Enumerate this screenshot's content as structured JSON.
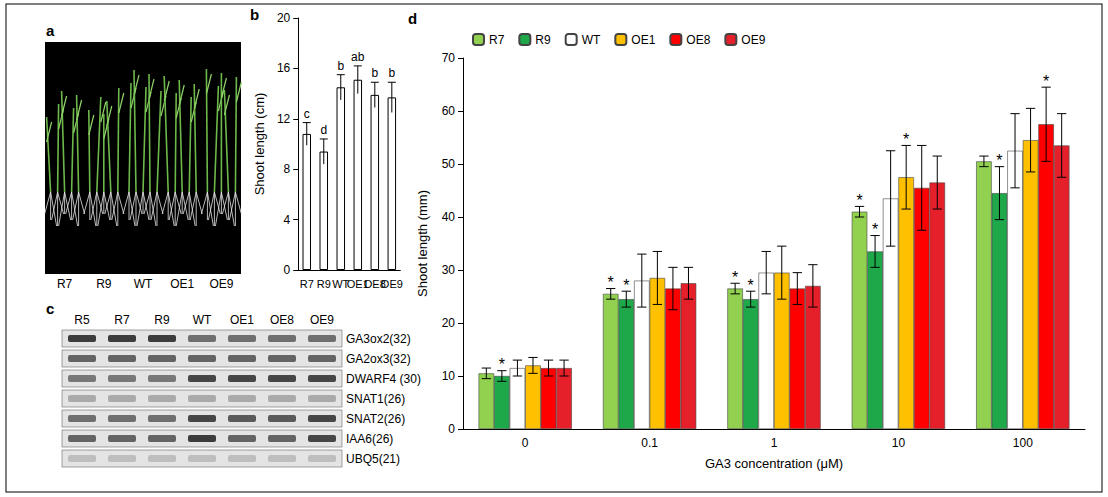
{
  "chart_data": [
    {
      "panel": "b",
      "type": "bar",
      "categories": [
        "R7",
        "R9",
        "WT",
        "OE1",
        "OE8",
        "OE9"
      ],
      "values": [
        10.8,
        9.4,
        14.5,
        15.1,
        13.9,
        13.7
      ],
      "errors": [
        0.9,
        1.0,
        1.0,
        1.1,
        1.0,
        1.2
      ],
      "letters": [
        "c",
        "d",
        "b",
        "ab",
        "b",
        "b"
      ],
      "color": "#ffffff",
      "y_label": "Shoot length (cm)",
      "ylim": [
        0,
        20
      ],
      "yticks": [
        0,
        4,
        8,
        12,
        16,
        20
      ]
    },
    {
      "panel": "d",
      "type": "bar",
      "categories": [
        "0",
        "0.1",
        "1",
        "10",
        "100"
      ],
      "x_label": "GA3 concentration (μM)",
      "y_label": "Shoot length (mm)",
      "ylim": [
        0,
        70
      ],
      "yticks": [
        0,
        10,
        20,
        30,
        40,
        50,
        60,
        70
      ],
      "legend": "top",
      "series": [
        {
          "name": "R7",
          "color": "#92d050",
          "values": [
            10.5,
            25.5,
            26.5,
            41,
            50.5
          ],
          "errors": [
            1,
            1,
            1,
            1,
            1
          ],
          "annotations": [
            null,
            "*",
            "*",
            "*",
            null
          ]
        },
        {
          "name": "R9",
          "color": "#1fa84a",
          "values": [
            10,
            24.5,
            24.5,
            33.5,
            44.5
          ],
          "errors": [
            1,
            1.5,
            1.5,
            3,
            5
          ],
          "annotations": [
            "*",
            "*",
            "*",
            "*",
            "*"
          ]
        },
        {
          "name": "WT",
          "color": "#ffffff",
          "values": [
            11.5,
            28,
            29.5,
            43.5,
            52.5
          ],
          "errors": [
            1.5,
            5,
            4,
            9,
            7
          ],
          "annotations": [
            null,
            null,
            null,
            null,
            null
          ]
        },
        {
          "name": "OE1",
          "color": "#ffc000",
          "values": [
            12,
            28.5,
            29.5,
            47.5,
            54.5
          ],
          "errors": [
            1.5,
            5,
            5,
            6,
            6
          ],
          "annotations": [
            null,
            null,
            null,
            "*",
            null
          ]
        },
        {
          "name": "OE8",
          "color": "#ff0000",
          "values": [
            11.5,
            26.5,
            26.5,
            45.5,
            57.5
          ],
          "errors": [
            1.5,
            4,
            3,
            8,
            7
          ],
          "annotations": [
            null,
            null,
            null,
            null,
            "*"
          ]
        },
        {
          "name": "OE9",
          "color": "#e6202a",
          "values": [
            11.5,
            27.5,
            27,
            46.5,
            53.5
          ],
          "errors": [
            1.5,
            3,
            4,
            5,
            6
          ],
          "annotations": [
            null,
            null,
            null,
            null,
            null
          ]
        }
      ]
    }
  ],
  "photo": {
    "panel": "a",
    "labels": [
      "R7",
      "R9",
      "WT",
      "OE1",
      "OE9"
    ]
  },
  "gel": {
    "panel": "c",
    "lanes": [
      "R5",
      "R7",
      "R9",
      "WT",
      "OE1",
      "OE8",
      "OE9"
    ],
    "rows": [
      {
        "label": "GA3ox2(32)",
        "intensity": [
          0.85,
          0.85,
          0.85,
          0.6,
          0.6,
          0.6,
          0.6
        ]
      },
      {
        "label": "GA2ox3(32)",
        "intensity": [
          0.65,
          0.65,
          0.65,
          0.65,
          0.65,
          0.65,
          0.65
        ]
      },
      {
        "label": "DWARF4 (30)",
        "intensity": [
          0.55,
          0.55,
          0.55,
          0.8,
          0.8,
          0.8,
          0.8
        ]
      },
      {
        "label": "SNAT1(26)",
        "intensity": [
          0.3,
          0.3,
          0.3,
          0.3,
          0.3,
          0.3,
          0.3
        ]
      },
      {
        "label": "SNAT2(26)",
        "intensity": [
          0.6,
          0.6,
          0.6,
          0.8,
          0.7,
          0.7,
          0.8
        ]
      },
      {
        "label": "IAA6(26)",
        "intensity": [
          0.65,
          0.65,
          0.65,
          0.85,
          0.65,
          0.65,
          0.8
        ]
      },
      {
        "label": "UBQ5(21)",
        "intensity": [
          0.2,
          0.2,
          0.2,
          0.2,
          0.2,
          0.2,
          0.2
        ]
      }
    ]
  }
}
